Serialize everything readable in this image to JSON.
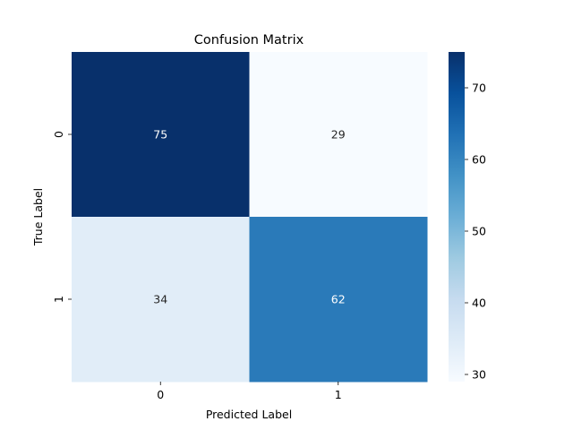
{
  "chart_data": {
    "type": "heatmap",
    "title": "Confusion Matrix",
    "xlabel": "Predicted Label",
    "ylabel": "True Label",
    "x_categories": [
      "0",
      "1"
    ],
    "y_categories": [
      "0",
      "1"
    ],
    "values": [
      [
        75,
        29
      ],
      [
        34,
        62
      ]
    ],
    "colormap": "Blues",
    "colorbar": {
      "range": [
        29,
        75
      ],
      "ticks": [
        30,
        40,
        50,
        60,
        70
      ]
    },
    "grid": false
  }
}
